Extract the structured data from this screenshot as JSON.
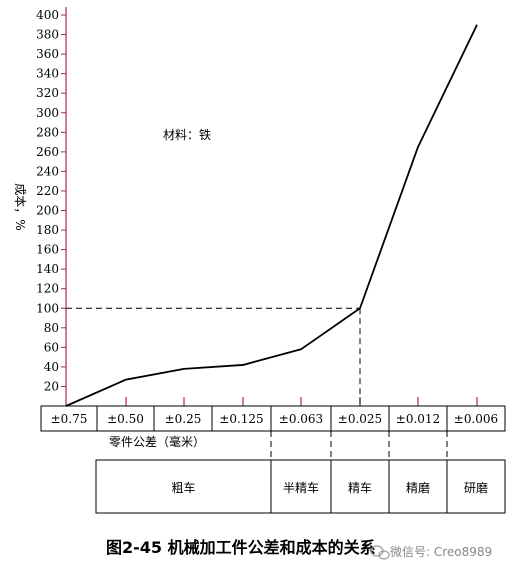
{
  "chart_data": {
    "type": "line",
    "ylabel": "成本，%",
    "ylim": [
      0,
      400
    ],
    "yticks": [
      20,
      40,
      60,
      80,
      100,
      120,
      140,
      160,
      180,
      200,
      220,
      240,
      260,
      280,
      300,
      320,
      340,
      360,
      380,
      400
    ],
    "categories": [
      "±0.75",
      "±0.50",
      "±0.25",
      "±0.125",
      "±0.063",
      "±0.025",
      "±0.012",
      "±0.006"
    ],
    "values": [
      0,
      27,
      38,
      42,
      58,
      100,
      265,
      390
    ],
    "xlabel": "零件公差（毫米）",
    "annotation": "材料：铁",
    "reference_value": 100,
    "reference_category": "±0.025",
    "processes": [
      "粗车",
      "半精车",
      "精车",
      "精磨",
      "研磨"
    ],
    "axis_color": "#b0226a"
  },
  "caption": "图2-45 机械加工件公差和成本的关系",
  "watermark": "微信号: Creo8989"
}
